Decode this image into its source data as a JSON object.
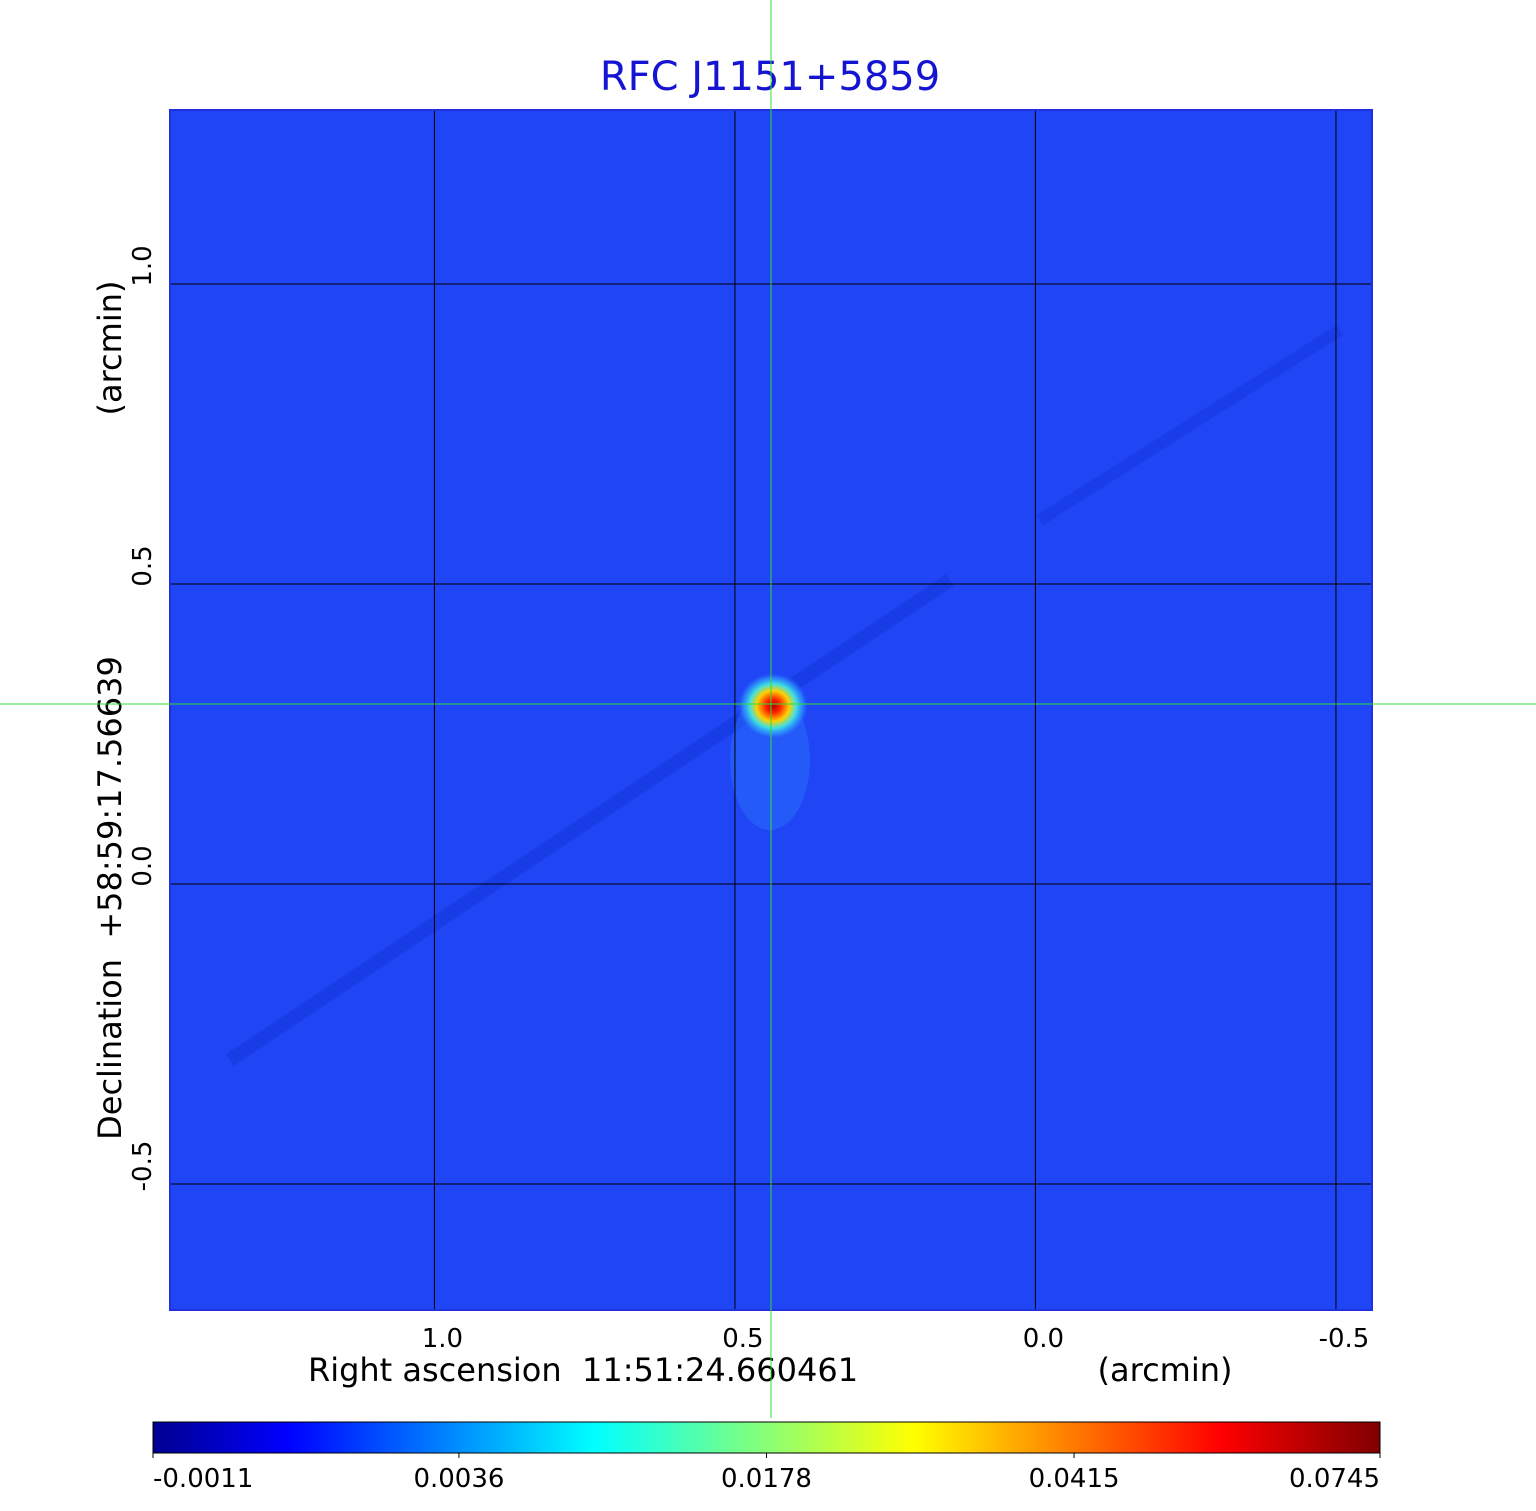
{
  "chart_data": {
    "type": "image",
    "title": "RFC J1151+5859",
    "x_label": "Right ascension  11:51:24.660461",
    "x_unit": "(arcmin)",
    "y_label": "Declination  +58:59:17.56639",
    "y_unit": "(arcmin)",
    "xlim": [
      1.44,
      -0.56
    ],
    "ylim": [
      -0.71,
      1.29
    ],
    "xticks": [
      {
        "value": 1,
        "label": "1.0"
      },
      0.5,
      {
        "value": 0,
        "label": "0.0"
      },
      -0.5
    ],
    "yticks": [
      {
        "value": 1,
        "label": "1.0"
      },
      0.5,
      {
        "value": 0,
        "label": "0.0"
      },
      -0.5
    ],
    "grid": true,
    "crosshair": {
      "x": 0.44,
      "y": 0.3,
      "color": "#33dd33"
    },
    "colorbar": {
      "colormap": "jet",
      "scale": "sqrt",
      "lim": [
        -0.0011,
        0.0745
      ],
      "ticks": [
        -0.0011,
        0.0036,
        0.0178,
        0.0415,
        0.0745
      ]
    }
  }
}
